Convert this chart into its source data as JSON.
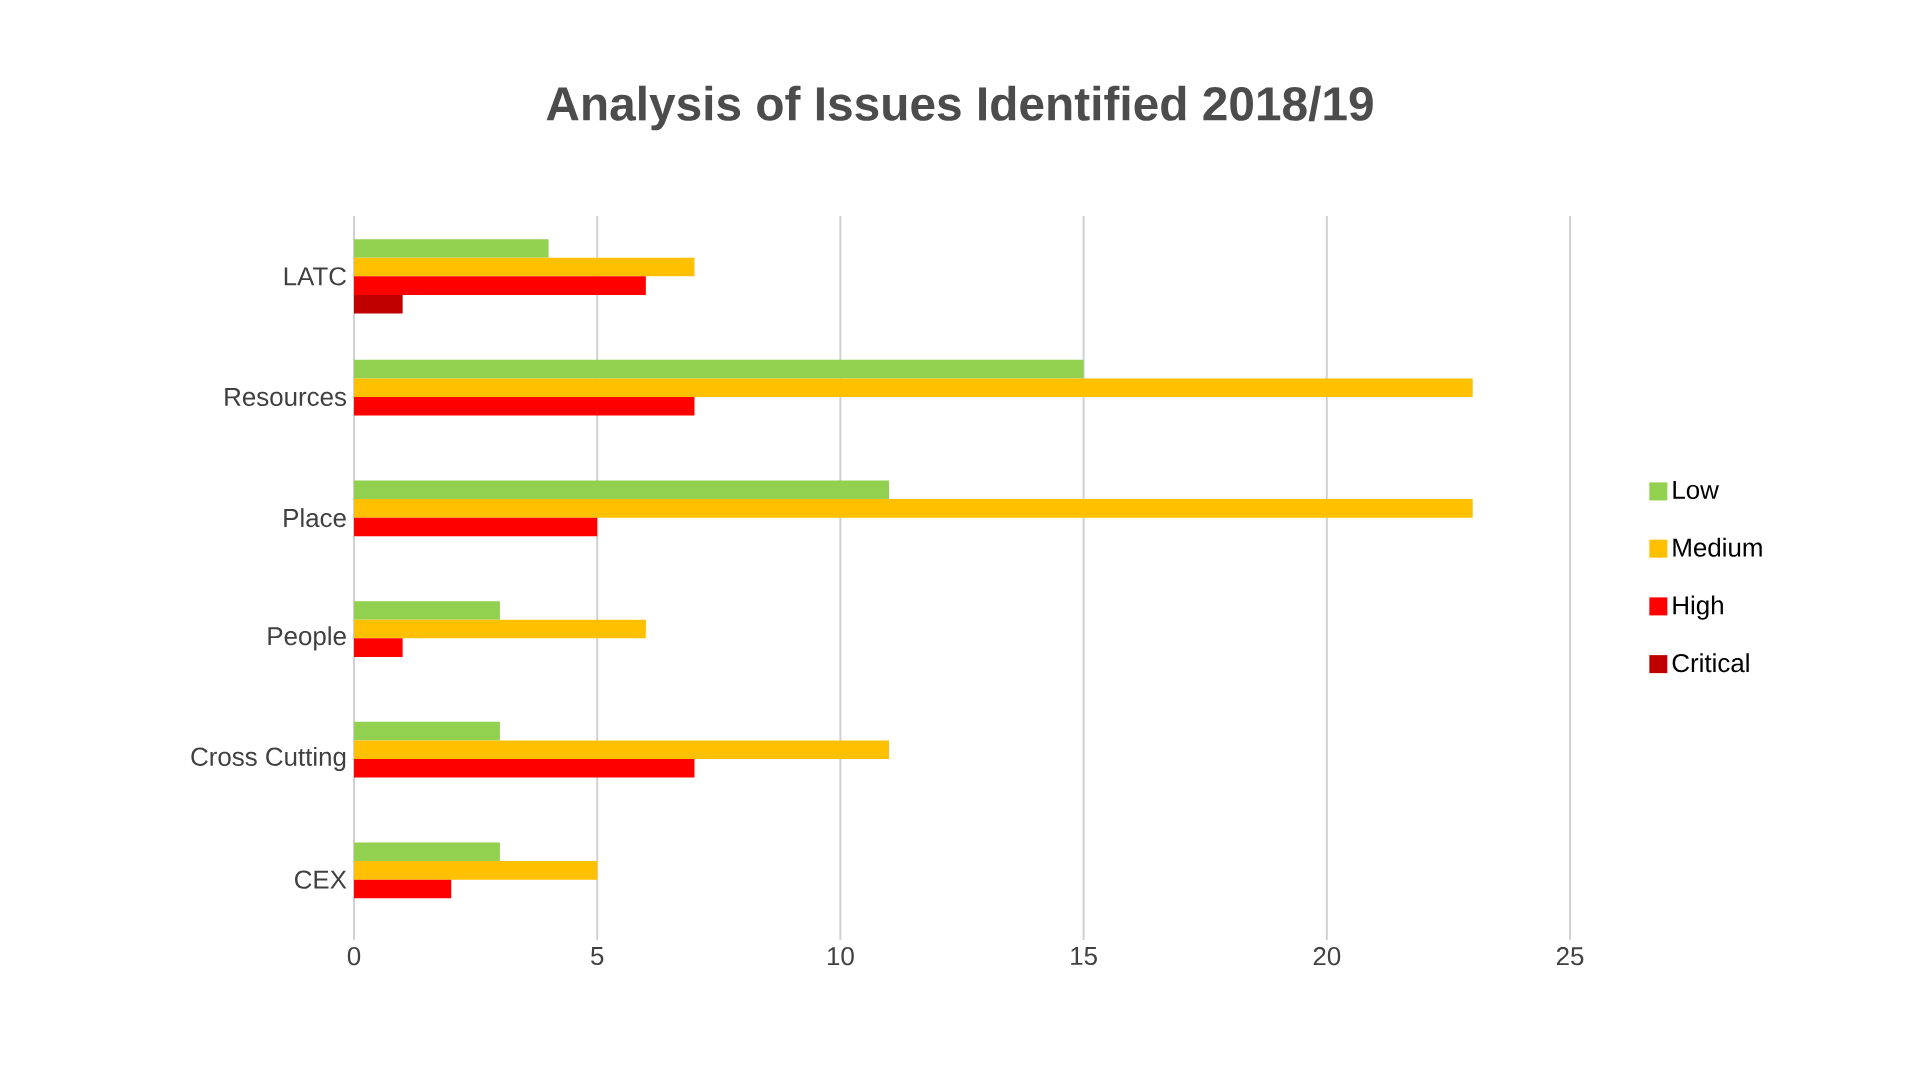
{
  "chart_data": {
    "type": "bar",
    "orientation": "horizontal",
    "title": "Analysis of Issues Identified 2018/19",
    "categories": [
      "LATC",
      "Resources",
      "Place",
      "People",
      "Cross Cutting",
      "CEX"
    ],
    "series": [
      {
        "name": "Low",
        "color": "#92d050",
        "values": [
          4,
          15,
          11,
          3,
          3,
          3
        ]
      },
      {
        "name": "Medium",
        "color": "#ffc000",
        "values": [
          7,
          23,
          23,
          6,
          11,
          5
        ]
      },
      {
        "name": "High",
        "color": "#ff0000",
        "values": [
          6,
          7,
          5,
          1,
          7,
          2
        ]
      },
      {
        "name": "Critical",
        "color": "#c00000",
        "values": [
          1,
          0,
          0,
          0,
          0,
          0
        ]
      }
    ],
    "xlim": [
      0,
      25
    ],
    "xticks": [
      0,
      5,
      10,
      15,
      20,
      25
    ],
    "grid": "x",
    "legend": "right"
  }
}
